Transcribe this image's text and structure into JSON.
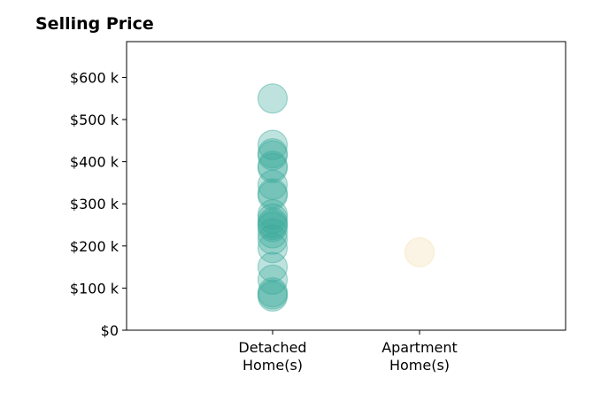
{
  "chart_data": {
    "type": "scatter",
    "title": "Selling Price",
    "xlabel": "",
    "ylabel": "",
    "categories": [
      "Detached\nHome(s)",
      "Apartment\nHome(s)"
    ],
    "ylim": [
      0,
      685000
    ],
    "y_ticks": [
      0,
      100000,
      200000,
      300000,
      400000,
      500000,
      600000
    ],
    "y_tick_labels": [
      "$0",
      "$100 k",
      "$200 k",
      "$300 k",
      "$400 k",
      "$500 k",
      "$600 k"
    ],
    "grid": false,
    "series": [
      {
        "category": "Detached\nHome(s)",
        "color": "#3aa99a",
        "values": [
          550000,
          440000,
          420000,
          415000,
          390000,
          385000,
          345000,
          325000,
          320000,
          275000,
          265000,
          255000,
          250000,
          245000,
          230000,
          215000,
          195000,
          150000,
          120000,
          90000,
          85000,
          80000
        ]
      },
      {
        "category": "Apartment\nHome(s)",
        "color": "#f3dfae",
        "values": [
          185000
        ]
      }
    ]
  }
}
